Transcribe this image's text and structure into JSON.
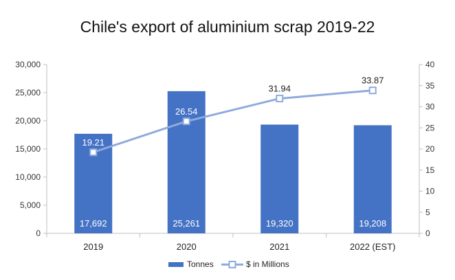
{
  "chart_data": {
    "type": "bar+line",
    "title": "Chile's export of aluminium scrap 2019-22",
    "categories": [
      "2019",
      "2020",
      "2021",
      "2022 (EST)"
    ],
    "series": [
      {
        "name": "Tonnes",
        "type": "bar",
        "axis": "left",
        "color": "#4472C4",
        "values": [
          17692,
          25261,
          19320,
          19208
        ],
        "labels": [
          "17,692",
          "25,261",
          "19,320",
          "19,208"
        ]
      },
      {
        "name": "$ in Millions",
        "type": "line",
        "axis": "right",
        "color": "#8FAADC",
        "values": [
          19.21,
          26.54,
          31.94,
          33.87
        ],
        "labels": [
          "19.21",
          "26.54",
          "31.94",
          "33.87"
        ]
      }
    ],
    "y_left": {
      "min": 0,
      "max": 30000,
      "step": 5000,
      "ticks": [
        "0",
        "5,000",
        "10,000",
        "15,000",
        "20,000",
        "25,000",
        "30,000"
      ]
    },
    "y_right": {
      "min": 0,
      "max": 40,
      "step": 5,
      "ticks": [
        "0",
        "5",
        "10",
        "15",
        "20",
        "25",
        "30",
        "35",
        "40"
      ]
    },
    "grid": false,
    "legend": "bottom"
  }
}
